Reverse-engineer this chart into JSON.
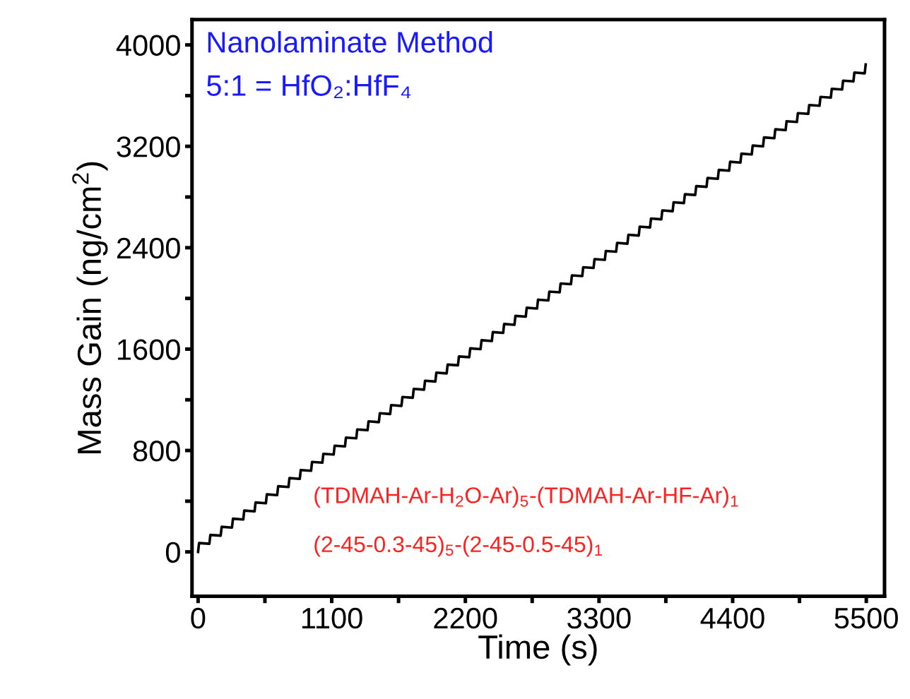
{
  "chart_data": {
    "type": "line",
    "title": "Nanolaminate Method",
    "subtitle": "5:1 = HfO₂:HfF₄",
    "xlabel": "Time (s)",
    "ylabel": "Mass Gain (ng/cm$^{2}$)",
    "annotations": [
      "(TDMAH-Ar-H$_{2}$O-Ar)$_{5}$-(TDMAH-Ar-HF-Ar)$_{1}$",
      "(2-45-0.3-45)$_{5}$-(2-45-0.5-45)$_{1}$"
    ],
    "xlim": [
      -50,
      5650
    ],
    "ylim": [
      -350,
      4200
    ],
    "xticks": [
      0,
      {
        "value": 550,
        "label": null
      },
      1100,
      {
        "value": 1650,
        "label": null
      },
      2200,
      {
        "value": 2750,
        "label": null
      },
      3300,
      {
        "value": 3850,
        "label": null
      },
      4400,
      {
        "value": 4950,
        "label": null
      },
      5500
    ],
    "yticks": [
      0,
      {
        "value": 400,
        "label": null
      },
      800,
      {
        "value": 1200,
        "label": null
      },
      1600,
      {
        "value": 2000,
        "label": null
      },
      2400,
      {
        "value": 2800,
        "label": null
      },
      3200,
      {
        "value": 3600,
        "label": null
      },
      4000
    ],
    "marker": "none",
    "line_style": "solid",
    "series": [
      {
        "color": "#000000",
        "x": [
          0,
          8,
          93,
          101,
          186,
          194,
          279,
          287,
          372,
          380,
          465,
          473,
          558,
          566,
          651,
          659,
          744,
          752,
          837,
          845,
          930,
          938,
          1023,
          1031,
          1116,
          1124,
          1209,
          1217,
          1302,
          1310,
          1395,
          1403,
          1488,
          1496,
          1581,
          1589,
          1674,
          1682,
          1767,
          1775,
          1860,
          1868,
          1953,
          1961,
          2046,
          2054,
          2139,
          2147,
          2232,
          2240,
          2325,
          2333,
          2418,
          2426,
          2511,
          2519,
          2604,
          2612,
          2697,
          2705,
          2790,
          2798,
          2883,
          2891,
          2976,
          2984,
          3069,
          3077,
          3162,
          3170,
          3255,
          3263,
          3348,
          3356,
          3441,
          3449,
          3534,
          3542,
          3627,
          3635,
          3720,
          3728,
          3813,
          3821,
          3906,
          3914,
          3999,
          4007,
          4092,
          4100,
          4185,
          4193,
          4278,
          4286,
          4371,
          4379,
          4464,
          4472,
          4557,
          4565,
          4650,
          4658,
          4743,
          4751,
          4836,
          4844,
          4929,
          4937,
          5022,
          5030,
          5115,
          5123,
          5208,
          5216,
          5301,
          5309,
          5394,
          5402,
          5487,
          5495
        ],
        "values": [
          0,
          70,
          64,
          134,
          128,
          198,
          192,
          262,
          256,
          326,
          320,
          390,
          384,
          454,
          448,
          518,
          512,
          582,
          576,
          646,
          640,
          710,
          704,
          774,
          768,
          838,
          832,
          902,
          896,
          966,
          960,
          1030,
          1024,
          1094,
          1088,
          1158,
          1152,
          1222,
          1216,
          1286,
          1280,
          1350,
          1344,
          1414,
          1408,
          1478,
          1472,
          1542,
          1536,
          1606,
          1600,
          1670,
          1664,
          1734,
          1728,
          1798,
          1792,
          1862,
          1856,
          1926,
          1920,
          1990,
          1984,
          2054,
          2048,
          2118,
          2112,
          2182,
          2176,
          2246,
          2240,
          2310,
          2304,
          2374,
          2368,
          2438,
          2432,
          2502,
          2496,
          2566,
          2560,
          2630,
          2624,
          2694,
          2688,
          2758,
          2752,
          2822,
          2816,
          2886,
          2880,
          2950,
          2944,
          3014,
          3008,
          3078,
          3072,
          3142,
          3136,
          3206,
          3200,
          3270,
          3264,
          3334,
          3328,
          3398,
          3392,
          3462,
          3456,
          3526,
          3520,
          3590,
          3584,
          3654,
          3648,
          3718,
          3712,
          3782,
          3776,
          3846
        ]
      }
    ]
  }
}
